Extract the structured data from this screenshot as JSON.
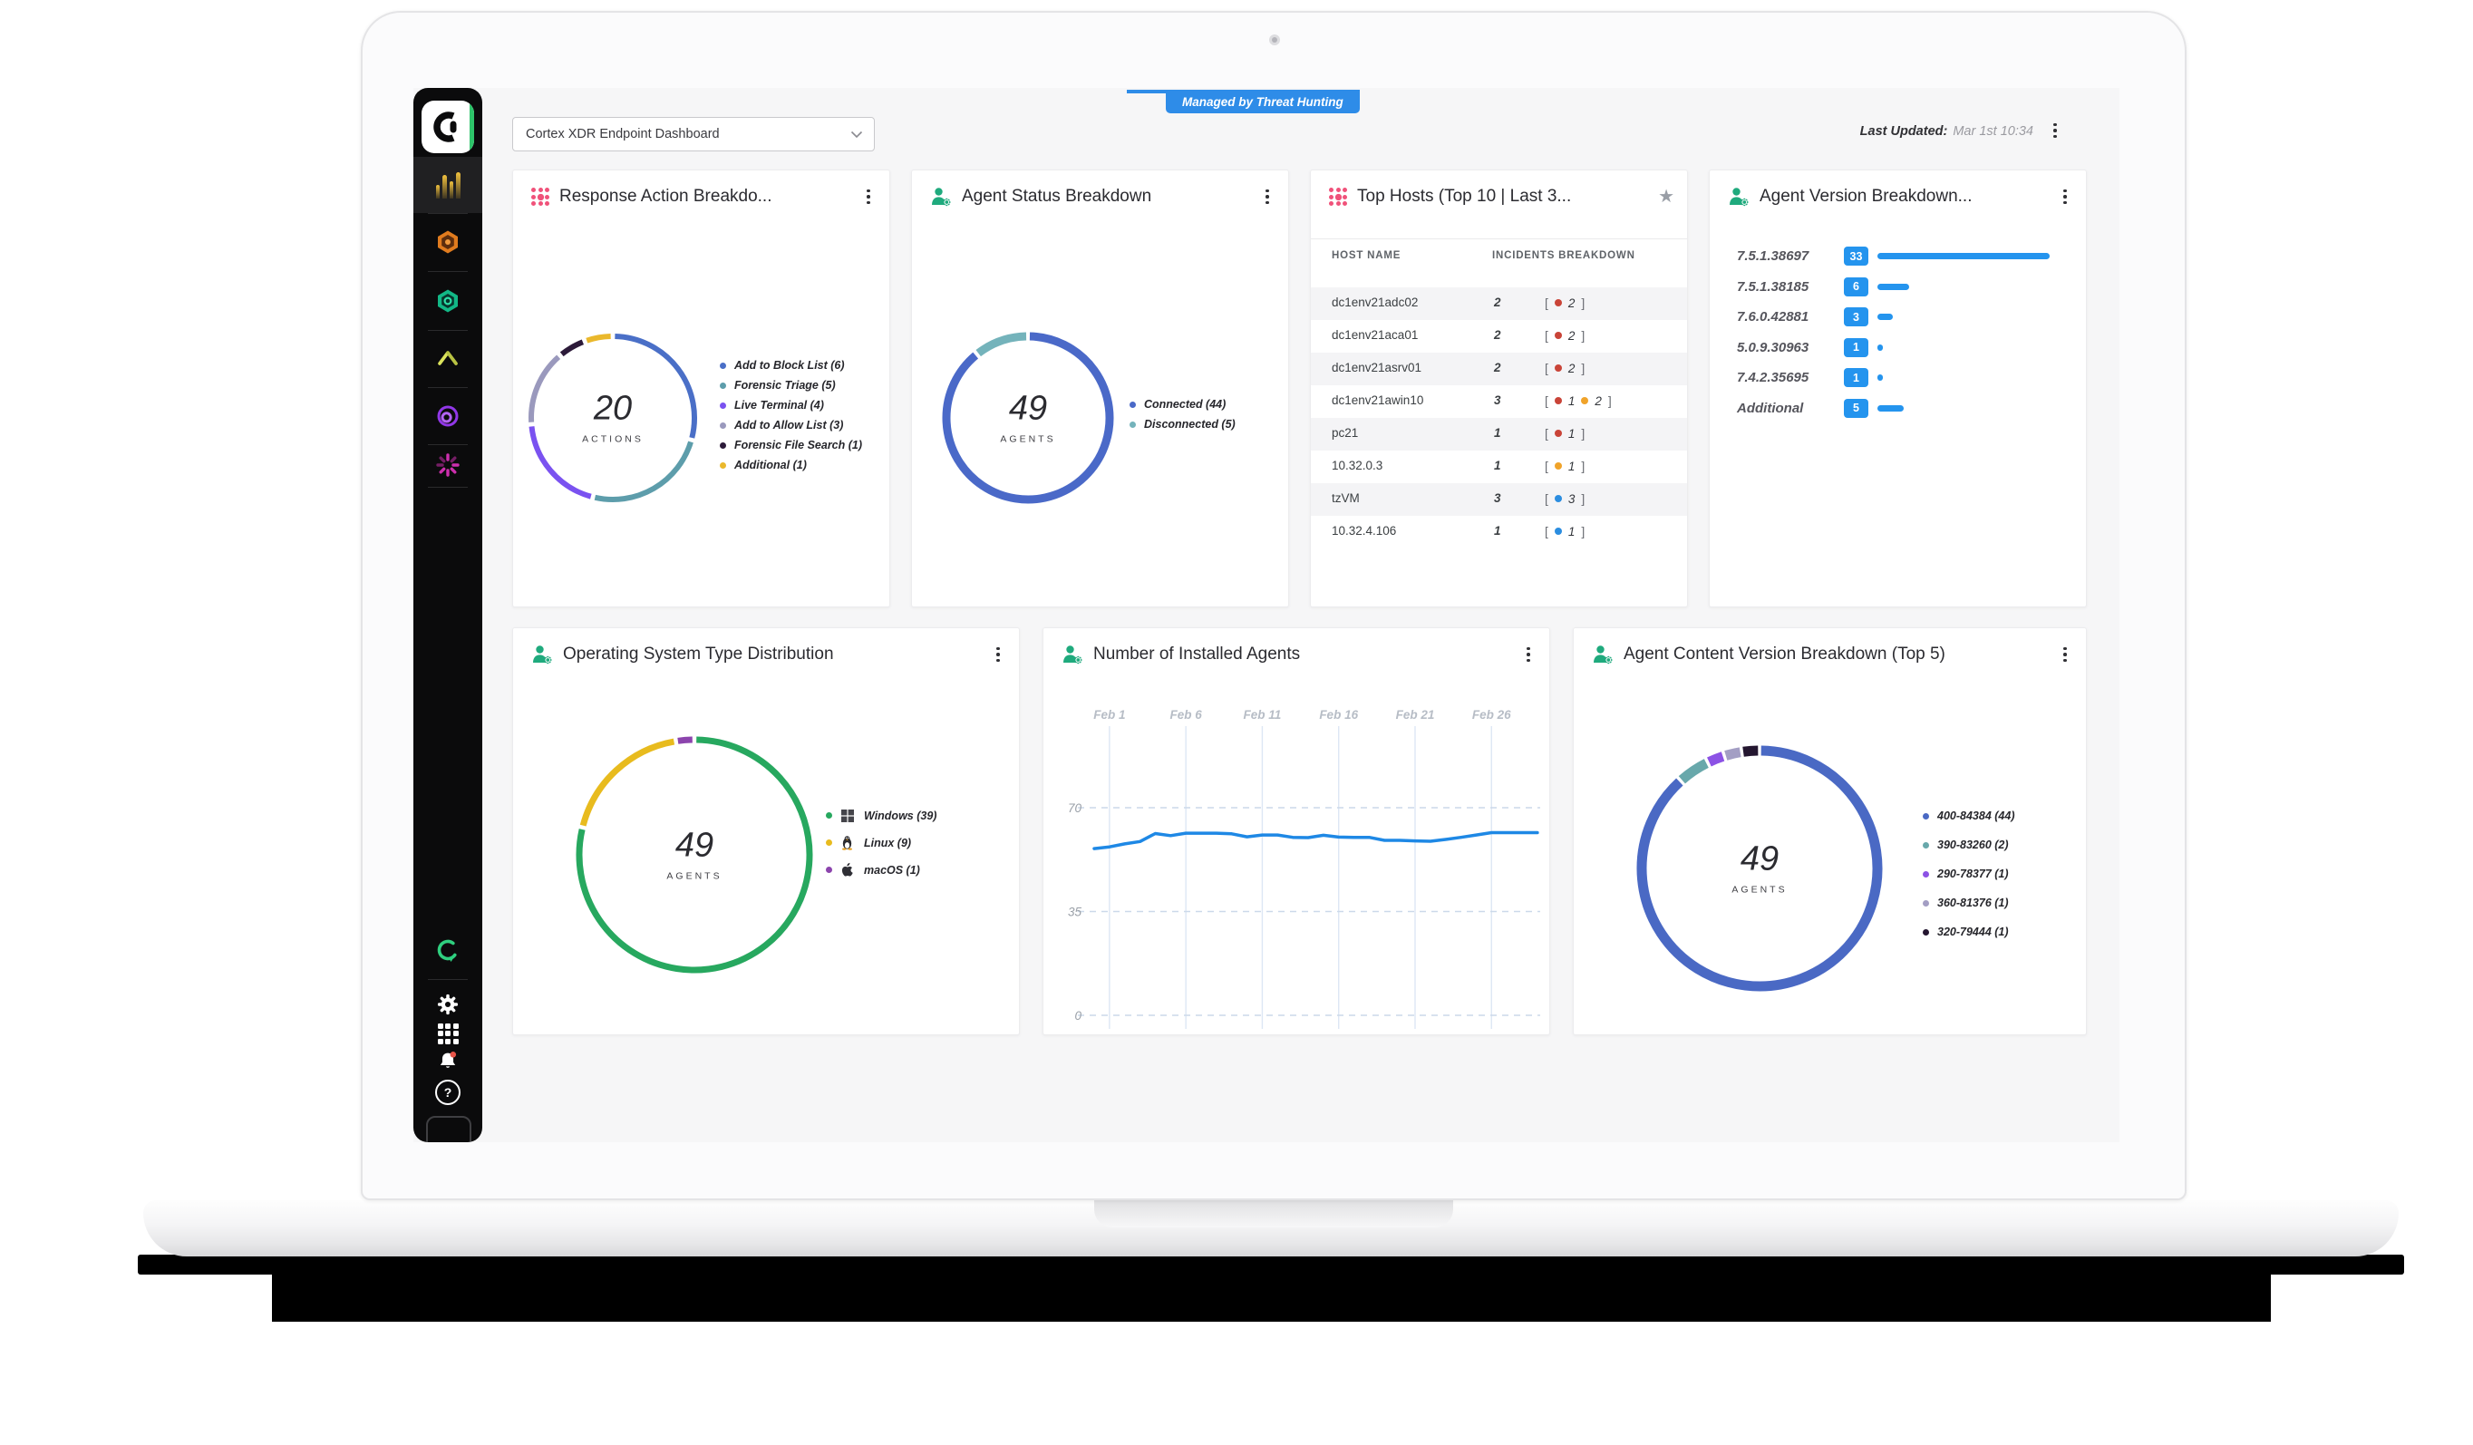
{
  "header": {
    "badge": "Managed by Threat Hunting",
    "dashboard_selector": "Cortex XDR Endpoint Dashboard",
    "last_updated_label": "Last Updated:",
    "last_updated_value": "Mar 1st 10:34"
  },
  "sidebar": {
    "icons": [
      "cortex-logo",
      "activity-bars",
      "hex-orange",
      "hex-green",
      "chevron-peak",
      "target-ring",
      "starburst",
      "sync-ring",
      "settings-gear",
      "apps-grid",
      "notifications-bell",
      "help"
    ]
  },
  "cards": {
    "response_actions": {
      "title": "Response Action Breakdo..."
    },
    "agent_status": {
      "title": "Agent Status Breakdown"
    },
    "top_hosts": {
      "title": "Top Hosts (Top 10 | Last 3..."
    },
    "agent_version": {
      "title": "Agent Version Breakdown..."
    },
    "os_distribution": {
      "title": "Operating System Type Distribution"
    },
    "installed_agents": {
      "title": "Number of Installed Agents"
    },
    "content_version": {
      "title": "Agent Content Version Breakdown (Top 5)"
    }
  },
  "chart_data": [
    {
      "id": "response_actions",
      "type": "pie",
      "title": "Response Action Breakdo...",
      "center_value": "20",
      "center_label": "ACTIONS",
      "segments": [
        {
          "label": "Add to Block List (6)",
          "value": 6,
          "color": "#4a6fc7"
        },
        {
          "label": "Forensic Triage (5)",
          "value": 5,
          "color": "#5d9dab"
        },
        {
          "label": "Live Terminal (4)",
          "value": 4,
          "color": "#7a52f0"
        },
        {
          "label": "Add to Allow List (3)",
          "value": 3,
          "color": "#9a99bd"
        },
        {
          "label": "Forensic File Search (1)",
          "value": 1,
          "color": "#2c1a39"
        },
        {
          "label": "Additional (1)",
          "value": 1,
          "color": "#eab82c"
        }
      ]
    },
    {
      "id": "agent_status",
      "type": "pie",
      "title": "Agent Status Breakdown",
      "center_value": "49",
      "center_label": "AGENTS",
      "segments": [
        {
          "label": "Connected (44)",
          "value": 44,
          "color": "#4a69c8"
        },
        {
          "label": "Disconnected (5)",
          "value": 5,
          "color": "#74b3bb"
        }
      ]
    },
    {
      "id": "top_hosts",
      "type": "table",
      "title": "Top Hosts (Top 10 | Last 3...",
      "columns": [
        "HOST NAME",
        "INCIDENTS BREAKDOWN"
      ],
      "rows": [
        {
          "host": "dc1env21adc02",
          "count": "2",
          "breakdown": [
            {
              "color": "#c94438",
              "value": "2"
            }
          ]
        },
        {
          "host": "dc1env21aca01",
          "count": "2",
          "breakdown": [
            {
              "color": "#c94438",
              "value": "2"
            }
          ]
        },
        {
          "host": "dc1env21asrv01",
          "count": "2",
          "breakdown": [
            {
              "color": "#c94438",
              "value": "2"
            }
          ]
        },
        {
          "host": "dc1env21awin10",
          "count": "3",
          "breakdown": [
            {
              "color": "#c94438",
              "value": "1"
            },
            {
              "color": "#f0a32a",
              "value": "2"
            }
          ]
        },
        {
          "host": "pc21",
          "count": "1",
          "breakdown": [
            {
              "color": "#c94438",
              "value": "1"
            }
          ]
        },
        {
          "host": "10.32.0.3",
          "count": "1",
          "breakdown": [
            {
              "color": "#f0a32a",
              "value": "1"
            }
          ]
        },
        {
          "host": "tzVM",
          "count": "3",
          "breakdown": [
            {
              "color": "#2b8de0",
              "value": "3"
            }
          ]
        },
        {
          "host": "10.32.4.106",
          "count": "1",
          "breakdown": [
            {
              "color": "#2b8de0",
              "value": "1"
            }
          ]
        }
      ]
    },
    {
      "id": "agent_version",
      "type": "bar",
      "title": "Agent Version Breakdown...",
      "color": "#2494ee",
      "max": 33,
      "rows": [
        {
          "label": "7.5.1.38697",
          "value": 33
        },
        {
          "label": "7.5.1.38185",
          "value": 6
        },
        {
          "label": "7.6.0.42881",
          "value": 3
        },
        {
          "label": "5.0.9.30963",
          "value": 1
        },
        {
          "label": "7.4.2.35695",
          "value": 1
        },
        {
          "label": "Additional",
          "value": 5
        }
      ]
    },
    {
      "id": "os_distribution",
      "type": "pie",
      "title": "Operating System Type Distribution",
      "center_value": "49",
      "center_label": "AGENTS",
      "segments": [
        {
          "label": "Windows (39)",
          "value": 39,
          "color": "#27a85f",
          "icon": "windows"
        },
        {
          "label": "Linux (9)",
          "value": 9,
          "color": "#e8bb1e",
          "icon": "linux"
        },
        {
          "label": "macOS (1)",
          "value": 1,
          "color": "#8c44ad",
          "icon": "macos"
        }
      ]
    },
    {
      "id": "installed_agents",
      "type": "line",
      "title": "Number of Installed Agents",
      "color": "#1e88e5",
      "x_tick_labels": [
        "Feb 1",
        "Feb 6",
        "Feb 11",
        "Feb 16",
        "Feb 21",
        "Feb 26"
      ],
      "x_tick_indexes": [
        1,
        6,
        11,
        16,
        21,
        26
      ],
      "y_ticks": [
        70,
        35,
        0
      ],
      "ylim": [
        0,
        130
      ],
      "values": [
        56.2,
        56.8,
        57.8,
        58.6,
        61.3,
        60.6,
        61.4,
        61.4,
        61.4,
        61.2,
        60.2,
        60.8,
        60.8,
        60.0,
        59.9,
        60.7,
        60.1,
        60.0,
        60.0,
        59.0,
        59.0,
        58.8,
        58.7,
        59.3,
        60.0,
        60.8,
        61.6,
        61.6,
        61.6,
        61.6
      ]
    },
    {
      "id": "content_version",
      "type": "pie",
      "title": "Agent Content Version Breakdown (Top 5)",
      "center_value": "49",
      "center_label": "AGENTS",
      "segments": [
        {
          "label": "400-84384 (44)",
          "value": 44,
          "color": "#4a69c4"
        },
        {
          "label": "390-83260 (2)",
          "value": 2,
          "color": "#68a8ab"
        },
        {
          "label": "290-78377 (1)",
          "value": 1,
          "color": "#8c52e5"
        },
        {
          "label": "360-81376 (1)",
          "value": 1,
          "color": "#a39ec4"
        },
        {
          "label": "320-79444 (1)",
          "value": 1,
          "color": "#241630"
        }
      ]
    }
  ]
}
